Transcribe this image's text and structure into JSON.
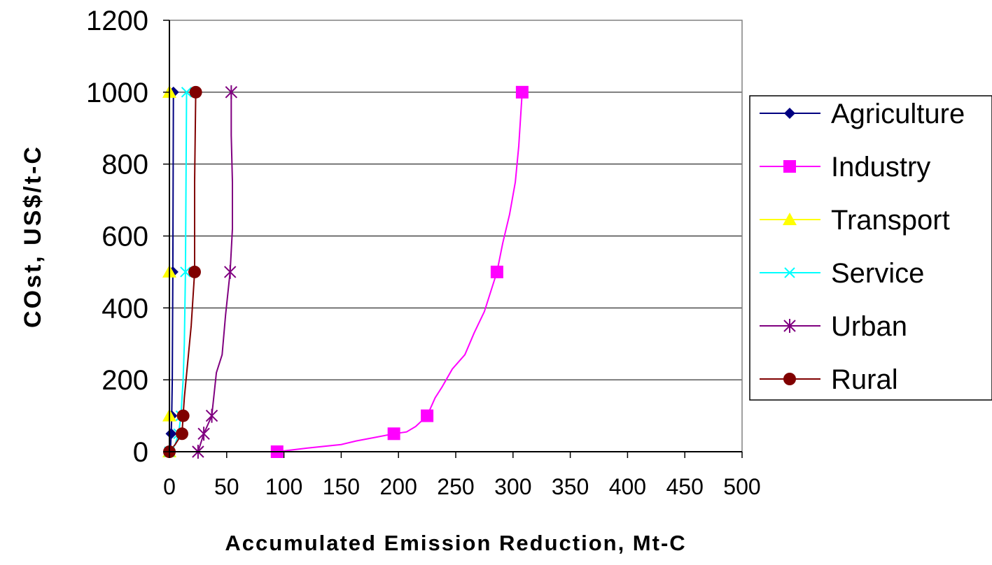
{
  "chart_data": {
    "type": "line",
    "xlabel": "Accumulated Emission Reduction, Mt-C",
    "ylabel": "COst, US$/t-C",
    "xlim": [
      0,
      500
    ],
    "ylim": [
      0,
      1200
    ],
    "xticks": [
      0,
      50,
      100,
      150,
      200,
      250,
      300,
      350,
      400,
      450,
      500
    ],
    "yticks": [
      0,
      200,
      400,
      600,
      800,
      1000,
      1200
    ],
    "grid": "horizontal",
    "legend_position": "right",
    "series": [
      {
        "name": "Agriculture",
        "color": "#000080",
        "marker": "diamond",
        "points": [
          [
            1,
            0
          ],
          [
            1,
            10
          ],
          [
            1.5,
            50
          ],
          [
            2,
            100
          ],
          [
            2.5,
            200
          ],
          [
            3,
            500
          ],
          [
            3.5,
            1000
          ]
        ],
        "marker_points": [
          [
            1,
            0
          ],
          [
            1.5,
            50
          ],
          [
            2,
            100
          ],
          [
            3,
            500
          ],
          [
            3.5,
            1000
          ]
        ]
      },
      {
        "name": "Industry",
        "color": "#FF00FF",
        "marker": "square",
        "points": [
          [
            94,
            0
          ],
          [
            120,
            10
          ],
          [
            150,
            20
          ],
          [
            163,
            30
          ],
          [
            180,
            40
          ],
          [
            196,
            50
          ],
          [
            207,
            55
          ],
          [
            215,
            70
          ],
          [
            225,
            100
          ],
          [
            232,
            150
          ],
          [
            238,
            180
          ],
          [
            247,
            230
          ],
          [
            258,
            270
          ],
          [
            266,
            330
          ],
          [
            275,
            390
          ],
          [
            286,
            500
          ],
          [
            291,
            580
          ],
          [
            297,
            660
          ],
          [
            302,
            750
          ],
          [
            305,
            850
          ],
          [
            308,
            1000
          ]
        ],
        "marker_points": [
          [
            94,
            0
          ],
          [
            196,
            50
          ],
          [
            225,
            100
          ],
          [
            286,
            500
          ],
          [
            308,
            1000
          ]
        ]
      },
      {
        "name": "Transport",
        "color": "#FFFF00",
        "marker": "triangle",
        "points": [
          [
            0,
            0
          ],
          [
            0,
            50
          ],
          [
            0,
            100
          ],
          [
            0,
            500
          ],
          [
            0,
            1000
          ]
        ],
        "marker_points": [
          [
            0,
            0
          ],
          [
            0,
            100
          ],
          [
            0,
            500
          ],
          [
            0,
            1000
          ]
        ]
      },
      {
        "name": "Service",
        "color": "#00FFFF",
        "marker": "x",
        "points": [
          [
            0,
            0
          ],
          [
            5,
            20
          ],
          [
            8,
            50
          ],
          [
            10,
            100
          ],
          [
            12,
            200
          ],
          [
            13,
            300
          ],
          [
            14,
            500
          ],
          [
            15,
            1000
          ]
        ],
        "marker_points": [
          [
            0,
            0
          ],
          [
            8,
            50
          ],
          [
            10,
            100
          ],
          [
            14,
            500
          ],
          [
            15,
            1000
          ]
        ]
      },
      {
        "name": "Urban",
        "color": "#800080",
        "marker": "star",
        "points": [
          [
            25,
            0
          ],
          [
            30,
            50
          ],
          [
            37,
            100
          ],
          [
            41,
            220
          ],
          [
            46,
            270
          ],
          [
            49,
            380
          ],
          [
            53,
            500
          ],
          [
            55,
            620
          ],
          [
            55,
            750
          ],
          [
            54,
            880
          ],
          [
            54,
            1000
          ]
        ],
        "marker_points": [
          [
            25,
            0
          ],
          [
            30,
            50
          ],
          [
            37,
            100
          ],
          [
            53,
            500
          ],
          [
            54,
            1000
          ]
        ]
      },
      {
        "name": "Rural",
        "color": "#800000",
        "marker": "circle",
        "points": [
          [
            0,
            0
          ],
          [
            5,
            20
          ],
          [
            11,
            50
          ],
          [
            12,
            100
          ],
          [
            13,
            150
          ],
          [
            16,
            250
          ],
          [
            19,
            350
          ],
          [
            22,
            500
          ],
          [
            22,
            750
          ],
          [
            23,
            1000
          ]
        ],
        "marker_points": [
          [
            0,
            0
          ],
          [
            11,
            50
          ],
          [
            12,
            100
          ],
          [
            22,
            500
          ],
          [
            23,
            1000
          ]
        ]
      }
    ]
  }
}
